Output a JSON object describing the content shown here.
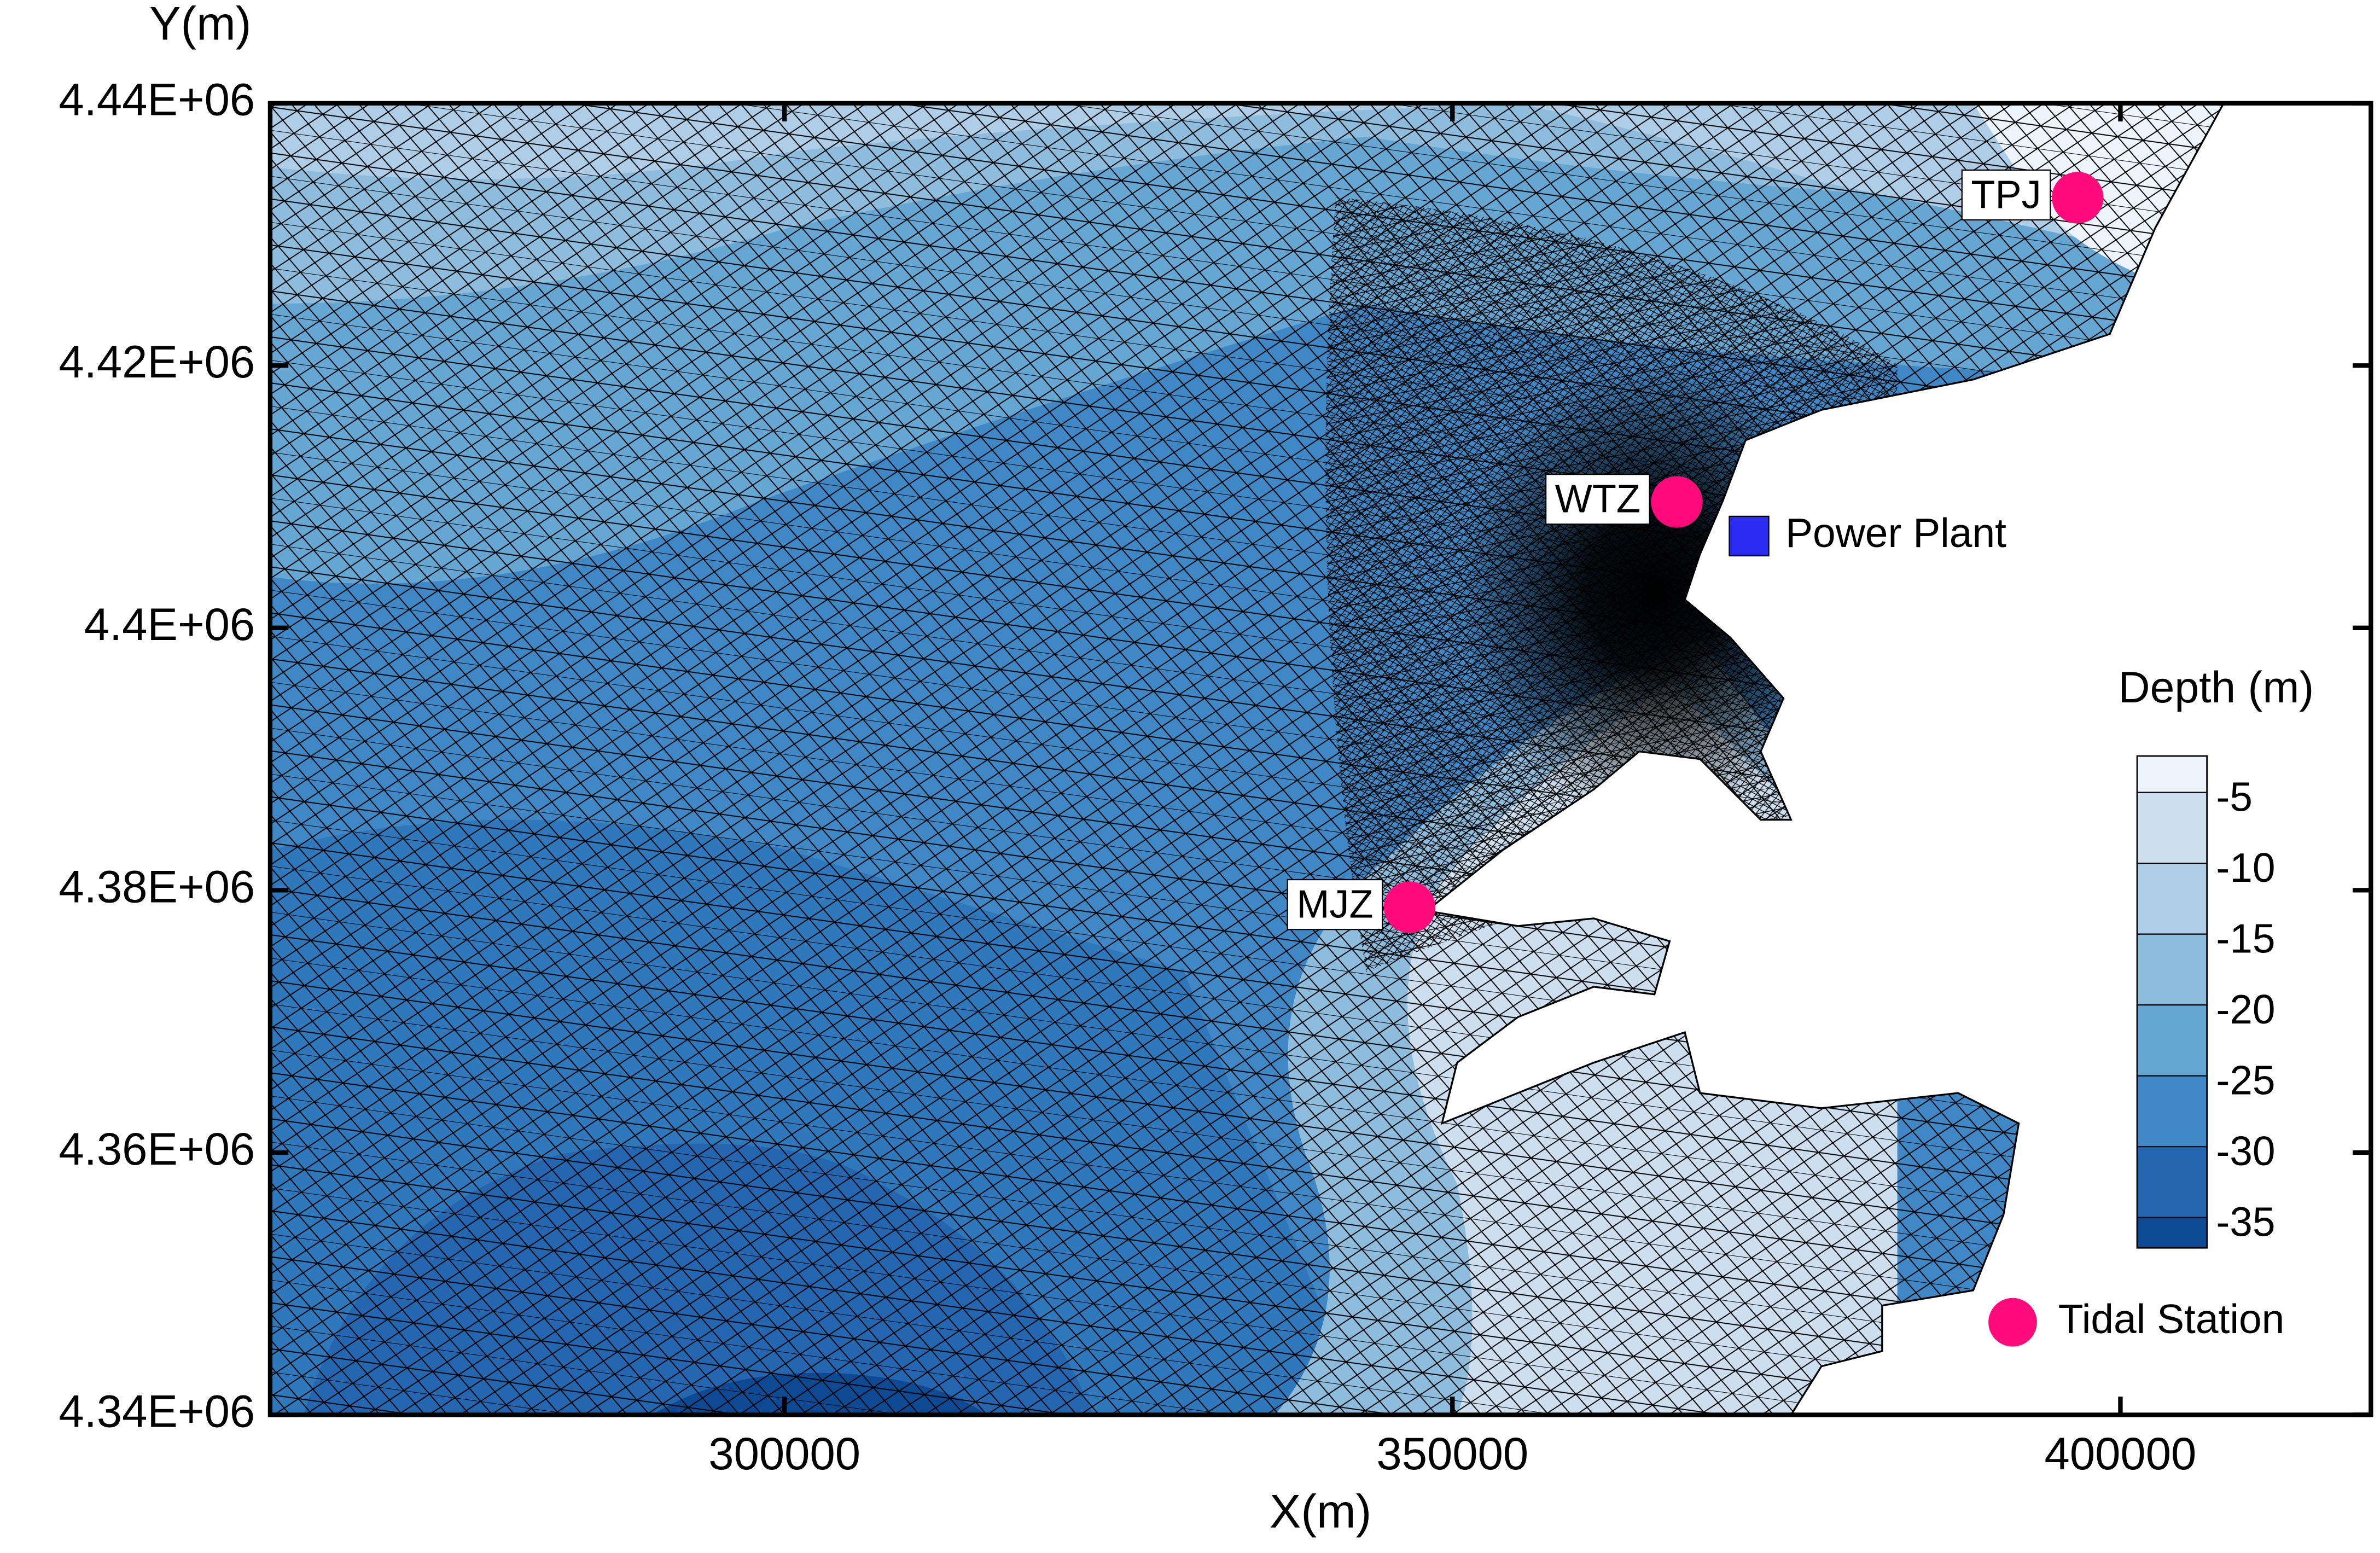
{
  "chart_data": {
    "type": "scatter",
    "xlabel": "X(m)",
    "ylabel": "Y(m)",
    "xlim": [
      261500,
      418750
    ],
    "ylim": [
      4340000,
      4440000
    ],
    "xticks": [
      300000,
      350000,
      400000
    ],
    "yticks": [
      {
        "value": 4340000,
        "label": "4.34E+06"
      },
      {
        "value": 4360000,
        "label": "4.36E+06"
      },
      {
        "value": 4380000,
        "label": "4.38E+06"
      },
      {
        "value": 4400000,
        "label": "4.4E+06"
      },
      {
        "value": 4420000,
        "label": "4.42E+06"
      },
      {
        "value": 4440000,
        "label": "4.44E+06"
      }
    ],
    "series": [
      {
        "name": "Tidal Station",
        "color": "#ff0a7a",
        "labels": [
          "TPJ",
          "WTZ",
          "MJZ"
        ],
        "x": [
          396800,
          366800,
          346800
        ],
        "values": [
          4432800,
          4409600,
          4378700
        ]
      },
      {
        "name": "Power Plant",
        "color": "#2b2bf2",
        "x": [
          372200
        ],
        "values": [
          4407000
        ]
      }
    ],
    "colorbar": {
      "title": "Depth (m)",
      "levels": [
        -5,
        -10,
        -15,
        -20,
        -25,
        -30,
        -35
      ],
      "colors": [
        "#eef4fb",
        "#cddfef",
        "#aecde6",
        "#8dbcdd",
        "#66a6d3",
        "#3f88c5",
        "#2467b0",
        "#0e4a94"
      ]
    }
  }
}
